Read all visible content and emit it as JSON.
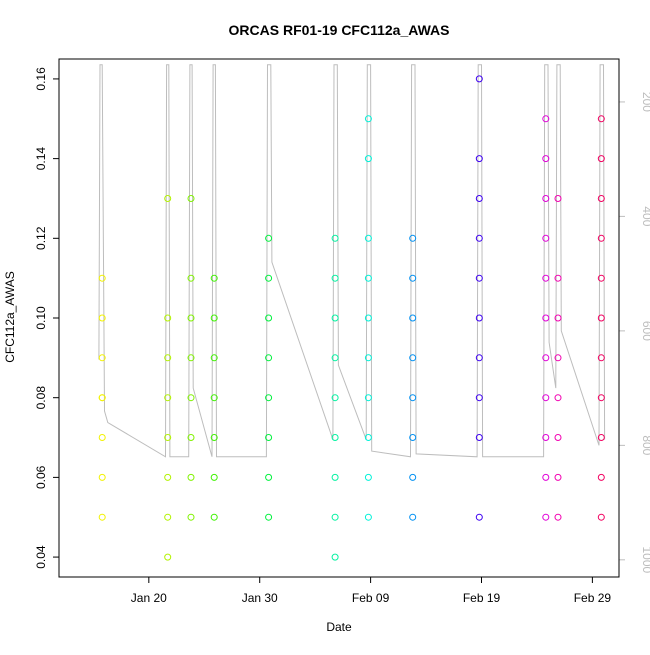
{
  "chart_data": {
    "type": "scatter",
    "title": "ORCAS RF01-19 CFC112a_AWAS",
    "xlabel": "Date",
    "ylabel": "CFC112a_AWAS",
    "x_ticks": [
      "Jan 20",
      "Jan 30",
      "Feb 09",
      "Feb 19",
      "Feb 29"
    ],
    "x_tick_days": [
      20,
      30,
      40,
      50,
      60
    ],
    "xlim_days": [
      11.9,
      62.4
    ],
    "ylim": [
      0.035,
      0.165
    ],
    "y_ticks": [
      0.04,
      0.06,
      0.08,
      0.1,
      0.12,
      0.14,
      0.16
    ],
    "y_tick_labels": [
      "0.04",
      "0.06",
      "0.08",
      "0.10",
      "0.12",
      "0.14",
      "0.16"
    ],
    "right_axis": {
      "color": "#bdbdbd",
      "reversed": true,
      "range": [
        1030,
        125
      ],
      "ticks": [
        200,
        400,
        600,
        800,
        1000
      ],
      "tick_labels": [
        "200",
        "400",
        "600",
        "800",
        "1000"
      ]
    },
    "flights": [
      {
        "day": 15.8,
        "color": "#f2f200",
        "values": [
          0.05,
          0.06,
          0.07,
          0.08,
          0.08,
          0.09,
          0.1,
          0.11
        ]
      },
      {
        "day": 21.7,
        "color": "#b3f200",
        "values": [
          0.04,
          0.05,
          0.06,
          0.07,
          0.08,
          0.09,
          0.1,
          0.13
        ]
      },
      {
        "day": 23.8,
        "color": "#80f200",
        "values": [
          0.05,
          0.06,
          0.07,
          0.08,
          0.09,
          0.1,
          0.11,
          0.13
        ]
      },
      {
        "day": 25.9,
        "color": "#3ef200",
        "values": [
          0.05,
          0.06,
          0.07,
          0.08,
          0.09,
          0.1,
          0.11
        ]
      },
      {
        "day": 30.8,
        "color": "#00f23e",
        "values": [
          0.05,
          0.06,
          0.07,
          0.08,
          0.09,
          0.1,
          0.11,
          0.12
        ]
      },
      {
        "day": 36.8,
        "color": "#00f2a0",
        "values": [
          0.04,
          0.05,
          0.06,
          0.07,
          0.08,
          0.09,
          0.1,
          0.11,
          0.12
        ]
      },
      {
        "day": 39.8,
        "color": "#00f2d8",
        "values": [
          0.05,
          0.06,
          0.07,
          0.08,
          0.09,
          0.1,
          0.11,
          0.12,
          0.14,
          0.15
        ]
      },
      {
        "day": 43.8,
        "color": "#0090f2",
        "values": [
          0.05,
          0.06,
          0.07,
          0.08,
          0.09,
          0.1,
          0.11,
          0.12
        ]
      },
      {
        "day": 49.8,
        "color": "#3e00f2",
        "values": [
          0.05,
          0.07,
          0.08,
          0.09,
          0.1,
          0.11,
          0.12,
          0.13,
          0.14,
          0.16
        ]
      },
      {
        "day": 55.8,
        "color": "#e000d8",
        "values": [
          0.05,
          0.06,
          0.07,
          0.08,
          0.09,
          0.1,
          0.11,
          0.12,
          0.13,
          0.14,
          0.15
        ]
      },
      {
        "day": 56.9,
        "color": "#f200b0",
        "values": [
          0.05,
          0.06,
          0.07,
          0.08,
          0.09,
          0.1,
          0.11,
          0.13
        ]
      },
      {
        "day": 60.8,
        "color": "#f20060",
        "values": [
          0.05,
          0.06,
          0.07,
          0.08,
          0.09,
          0.1,
          0.11,
          0.12,
          0.13,
          0.14,
          0.15
        ]
      }
    ],
    "pressure_trace": [
      [
        15.5,
        650
      ],
      [
        15.6,
        135
      ],
      [
        15.8,
        135
      ],
      [
        16.0,
        740
      ],
      [
        16.3,
        760
      ],
      [
        21.5,
        820
      ],
      [
        21.6,
        135
      ],
      [
        21.8,
        135
      ],
      [
        21.9,
        820
      ],
      [
        23.6,
        820
      ],
      [
        23.7,
        135
      ],
      [
        23.9,
        135
      ],
      [
        24.0,
        700
      ],
      [
        25.7,
        820
      ],
      [
        25.8,
        135
      ],
      [
        26.0,
        135
      ],
      [
        26.1,
        820
      ],
      [
        30.6,
        820
      ],
      [
        30.7,
        135
      ],
      [
        31.0,
        135
      ],
      [
        31.1,
        480
      ],
      [
        36.6,
        790
      ],
      [
        36.7,
        135
      ],
      [
        37.0,
        135
      ],
      [
        37.1,
        660
      ],
      [
        39.6,
        790
      ],
      [
        39.7,
        135
      ],
      [
        40.0,
        135
      ],
      [
        40.1,
        810
      ],
      [
        43.6,
        820
      ],
      [
        43.7,
        135
      ],
      [
        44.0,
        135
      ],
      [
        44.1,
        815
      ],
      [
        49.6,
        820
      ],
      [
        49.7,
        135
      ],
      [
        50.0,
        135
      ],
      [
        50.1,
        820
      ],
      [
        55.6,
        820
      ],
      [
        55.7,
        135
      ],
      [
        56.0,
        135
      ],
      [
        56.1,
        620
      ],
      [
        56.7,
        700
      ],
      [
        56.8,
        135
      ],
      [
        57.1,
        135
      ],
      [
        57.2,
        600
      ],
      [
        60.6,
        800
      ],
      [
        60.7,
        135
      ],
      [
        61.0,
        135
      ],
      [
        61.1,
        790
      ]
    ]
  }
}
